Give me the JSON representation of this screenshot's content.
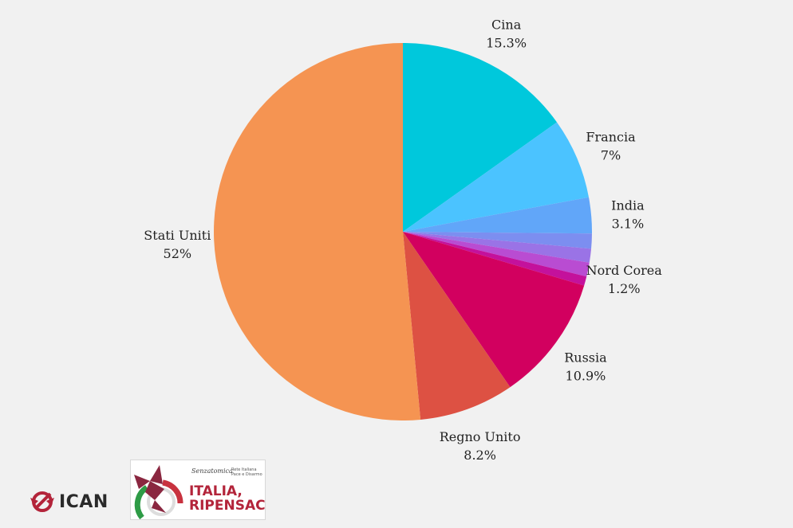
{
  "chart_data": {
    "type": "pie",
    "start_angle_deg": 0,
    "direction": "clockwise",
    "slices": [
      {
        "label": "Cina",
        "value": 15.3,
        "value_label": "15.3%",
        "color": "#00c8dc"
      },
      {
        "label": "Francia",
        "value": 7,
        "value_label": "7%",
        "color": "#4bc3ff"
      },
      {
        "label": "India",
        "value": 3.1,
        "value_label": "3.1%",
        "color": "#61a6f9"
      },
      {
        "label": "",
        "value": 1.3,
        "value_label": "",
        "color": "#7c8ef0"
      },
      {
        "label": "",
        "value": 1.2,
        "value_label": "",
        "color": "#9a73e6"
      },
      {
        "label": "Nord Corea",
        "value": 1.2,
        "value_label": "1.2%",
        "color": "#b94cd2"
      },
      {
        "label": "",
        "value": 0.8,
        "value_label": "",
        "color": "#c4119c"
      },
      {
        "label": "Russia",
        "value": 10.9,
        "value_label": "10.9%",
        "color": "#d2005f"
      },
      {
        "label": "Regno Unito",
        "value": 8.2,
        "value_label": "8.2%",
        "color": "#dd5143"
      },
      {
        "label": "Stati Uniti",
        "value": 52,
        "value_label": "52%",
        "color": "#f59452"
      }
    ]
  },
  "logos": {
    "ican": {
      "text": "ICAN",
      "icon": "ican-logo-icon",
      "color": "#b3243a"
    },
    "italia": {
      "line1": "ITALIA,",
      "line2": "RIPENSACI",
      "small": "Senzatomica",
      "tiny": "Rete Italiana Pace e Disarmo",
      "icon": "dove-logo-icon"
    }
  }
}
